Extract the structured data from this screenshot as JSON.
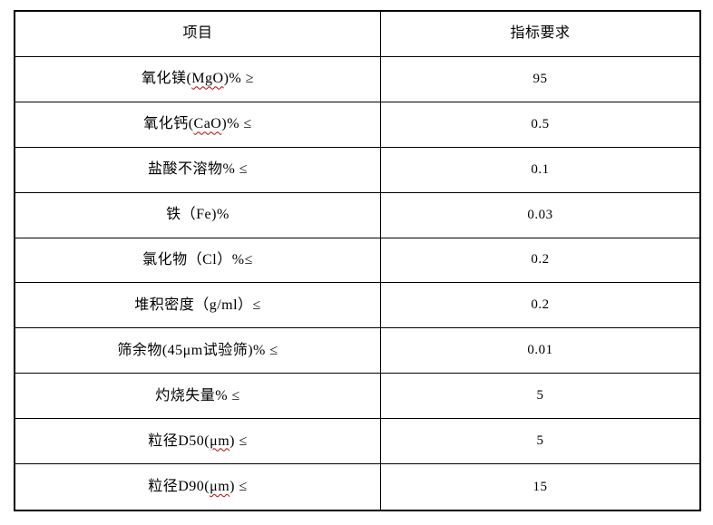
{
  "page": {
    "background": "#ffffff"
  },
  "colors": {
    "border": "#000000",
    "text": "#000000",
    "squiggle": "#c00000"
  },
  "table": {
    "header": {
      "item": "项目",
      "spec": "指标要求"
    },
    "rows": [
      {
        "label_parts": [
          {
            "t": "氧化镁(",
            "u": false
          },
          {
            "t": "MgO",
            "u": true
          },
          {
            "t": ")% ≥",
            "u": false
          }
        ],
        "value": "95"
      },
      {
        "label_parts": [
          {
            "t": "氧化钙(",
            "u": false
          },
          {
            "t": "CaO",
            "u": true
          },
          {
            "t": ")% ≤",
            "u": false
          }
        ],
        "value": "0.5"
      },
      {
        "label_parts": [
          {
            "t": "盐酸不溶物% ≤",
            "u": false
          }
        ],
        "value": "0.1"
      },
      {
        "label_parts": [
          {
            "t": "铁（Fe)%",
            "u": false
          }
        ],
        "value": "0.03"
      },
      {
        "label_parts": [
          {
            "t": "氯化物（Cl）%≤",
            "u": false
          }
        ],
        "value": "0.2"
      },
      {
        "label_parts": [
          {
            "t": "堆积密度（g/ml）≤",
            "u": false
          }
        ],
        "value": "0.2"
      },
      {
        "label_parts": [
          {
            "t": "筛余物(45μm试验筛)% ≤",
            "u": false
          }
        ],
        "value": "0.01"
      },
      {
        "label_parts": [
          {
            "t": "灼烧失量% ≤",
            "u": false
          }
        ],
        "value": "5"
      },
      {
        "label_parts": [
          {
            "t": "粒径D50(",
            "u": false
          },
          {
            "t": "μm",
            "u": true
          },
          {
            "t": ") ≤",
            "u": false
          }
        ],
        "value": "5"
      },
      {
        "label_parts": [
          {
            "t": "粒径D90(",
            "u": false
          },
          {
            "t": "μm",
            "u": true
          },
          {
            "t": ") ≤",
            "u": false
          }
        ],
        "value": "15"
      }
    ]
  }
}
